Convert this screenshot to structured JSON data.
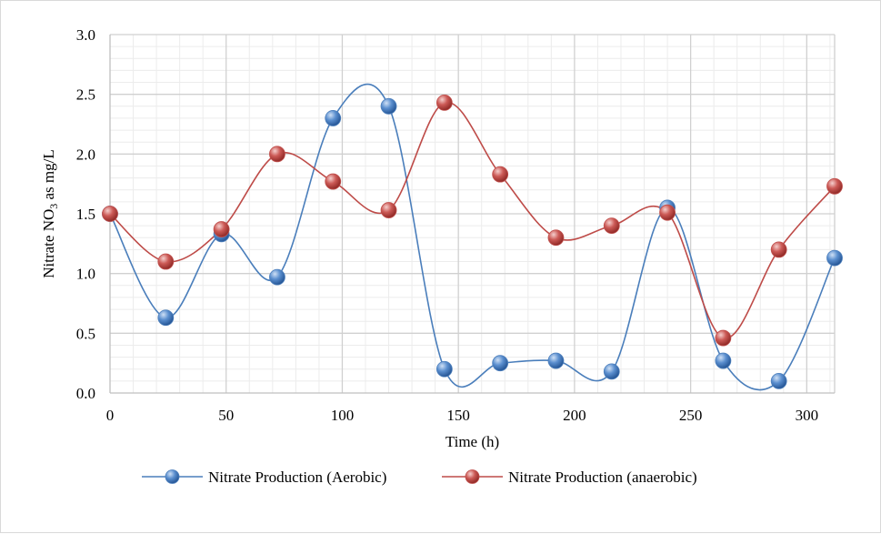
{
  "chart_data": {
    "type": "line",
    "smooth": true,
    "title": "",
    "xlabel": "Time (h)",
    "ylabel": {
      "prefix": "Nitrate NO",
      "subscript": "3",
      "suffix": " as mg/L"
    },
    "xlim": [
      0,
      312
    ],
    "ylim": [
      0,
      3
    ],
    "xticks": [
      0,
      50,
      100,
      150,
      200,
      250,
      300
    ],
    "xtick_labels": [
      "0",
      "50",
      "100",
      "150",
      "200",
      "250",
      "300"
    ],
    "yticks": [
      0,
      0.5,
      1,
      1.5,
      2,
      2.5,
      3
    ],
    "ytick_labels": [
      "0.0",
      "0.5",
      "1.0",
      "1.5",
      "2.0",
      "2.5",
      "3.0"
    ],
    "grid": true,
    "legend_position": "bottom",
    "x": [
      0,
      24,
      48,
      72,
      96,
      120,
      144,
      168,
      192,
      216,
      240,
      264,
      288,
      312
    ],
    "series": [
      {
        "name": "Nitrate Production (Aerobic)",
        "color": "#4a7ebb",
        "marker_color": "#4f81bd",
        "values": [
          1.5,
          0.63,
          1.33,
          0.97,
          2.3,
          2.4,
          0.2,
          0.25,
          0.27,
          0.18,
          1.55,
          0.27,
          0.1,
          1.13
        ]
      },
      {
        "name": "Nitrate Production (anaerobic)",
        "color": "#be4b48",
        "marker_color": "#c0504d",
        "values": [
          1.5,
          1.1,
          1.37,
          2.0,
          1.77,
          1.53,
          2.43,
          1.83,
          1.3,
          1.4,
          1.51,
          0.46,
          1.2,
          1.73
        ]
      }
    ]
  }
}
